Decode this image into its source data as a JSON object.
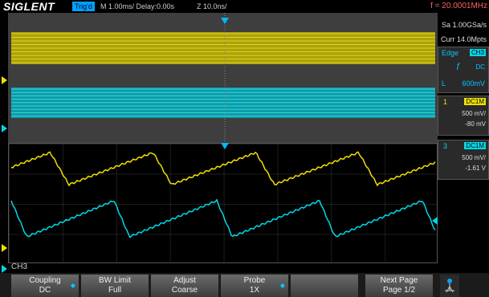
{
  "header": {
    "brand": "SIGLENT",
    "trigger_status": "Trig'd",
    "timebase": "M 1.00ms/ Delay:0.00s",
    "zoom": "Z 10.0ns/",
    "frequency": "f = 20.0001MHz"
  },
  "acquisition": {
    "sample_rate": "Sa 1.00GSa/s",
    "memory": "Curr 14.0Mpts"
  },
  "trigger": {
    "type": "Edge",
    "source": "CH3",
    "slope_icon": "rising-edge-icon",
    "coupling": "DC",
    "level_label": "L",
    "level": "600mV"
  },
  "channels": [
    {
      "num": "1",
      "coupling": "DC1M",
      "scale": "500 mV/",
      "offset": "-80 mV",
      "color": "#f0e000"
    },
    {
      "num": "3",
      "coupling": "DC1M",
      "scale": "500 mV/",
      "offset": "-1.61 V",
      "color": "#00d8e8"
    }
  ],
  "markers": {
    "ch1_marker": "1",
    "ch3_marker": "3",
    "trig_level_marker": "T"
  },
  "active_menu": "CH3",
  "softkeys": [
    {
      "label": "Coupling",
      "value": "DC",
      "has_arrow": true
    },
    {
      "label": "BW Limit",
      "value": "Full",
      "has_arrow": false
    },
    {
      "label": "Adjust",
      "value": "Coarse",
      "has_arrow": false
    },
    {
      "label": "Probe",
      "value": "1X",
      "has_arrow": true
    },
    {
      "label": "",
      "value": "",
      "has_arrow": false
    },
    {
      "label": "Next Page",
      "value": "Page 1/2",
      "has_arrow": false
    }
  ],
  "colors": {
    "ch1": "#f0e000",
    "ch3": "#00d8e8",
    "accent": "#00a4ff",
    "freq": "#ff6060"
  }
}
